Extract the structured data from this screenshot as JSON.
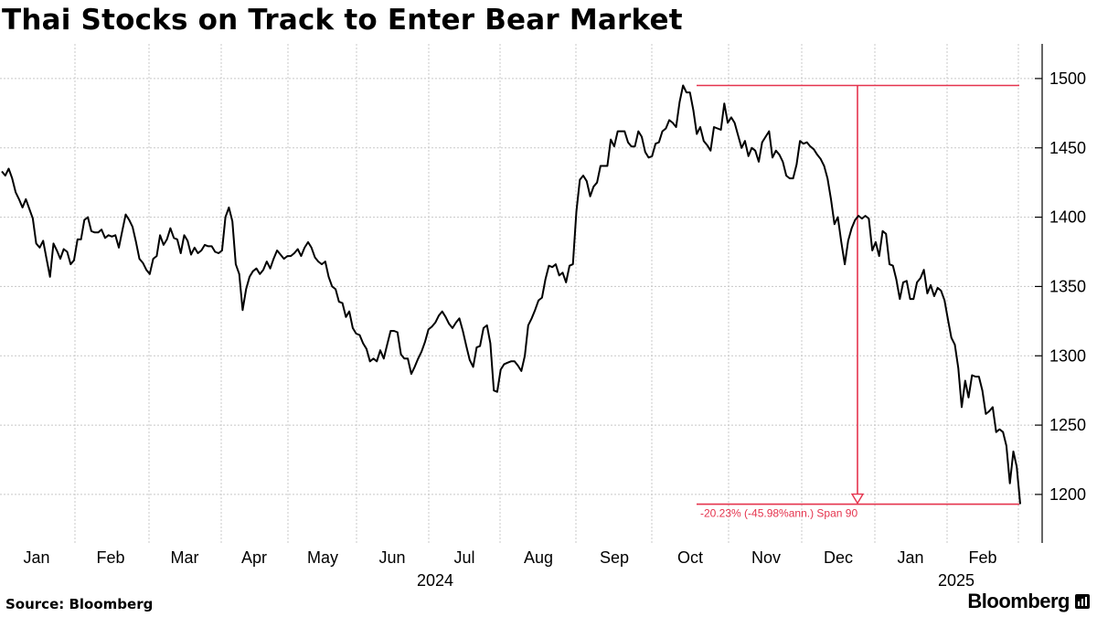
{
  "header": {
    "title": "Thai Stocks on Track to Enter Bear Market"
  },
  "footer": {
    "source": "Source: Bloomberg",
    "brand": "Bloomberg"
  },
  "colors": {
    "line": "#000000",
    "annotation": "#e5334d",
    "grid": "#c8c8c8"
  },
  "chart_data": {
    "type": "line",
    "title": "Thai Stocks on Track to Enter Bear Market",
    "xlabel": "",
    "ylabel": "",
    "ylim": [
      1165,
      1525
    ],
    "y_ticks": [
      1200,
      1250,
      1300,
      1350,
      1400,
      1450,
      1500
    ],
    "y_axis_side": "right",
    "x_month_labels": [
      "Jan",
      "Feb",
      "Mar",
      "Apr",
      "May",
      "Jun",
      "Jul",
      "Aug",
      "Sep",
      "Oct",
      "Nov",
      "Dec",
      "Jan",
      "Feb"
    ],
    "x_year_labels": [
      "2024",
      "2025"
    ],
    "grid": true,
    "series": [
      {
        "name": "",
        "values": [
          1433,
          1430,
          1435,
          1428,
          1418,
          1413,
          1407,
          1413,
          1406,
          1399,
          1381,
          1378,
          1383,
          1370,
          1357,
          1381,
          1376,
          1370,
          1377,
          1375,
          1366,
          1369,
          1384,
          1384,
          1398,
          1400,
          1390,
          1389,
          1389,
          1391,
          1385,
          1387,
          1386,
          1387,
          1378,
          1390,
          1402,
          1398,
          1393,
          1382,
          1370,
          1367,
          1362,
          1359,
          1370,
          1372,
          1387,
          1380,
          1384,
          1392,
          1385,
          1384,
          1374,
          1387,
          1383,
          1373,
          1378,
          1374,
          1376,
          1380,
          1379,
          1379,
          1375,
          1374,
          1376,
          1400,
          1407,
          1397,
          1366,
          1359,
          1333,
          1348,
          1357,
          1361,
          1363,
          1359,
          1362,
          1368,
          1363,
          1370,
          1376,
          1373,
          1370,
          1372,
          1372,
          1374,
          1377,
          1372,
          1378,
          1382,
          1378,
          1371,
          1368,
          1366,
          1368,
          1357,
          1350,
          1348,
          1339,
          1338,
          1328,
          1332,
          1320,
          1316,
          1315,
          1309,
          1305,
          1296,
          1298,
          1296,
          1304,
          1298,
          1308,
          1318,
          1318,
          1317,
          1301,
          1298,
          1298,
          1287,
          1292,
          1298,
          1303,
          1310,
          1319,
          1321,
          1324,
          1329,
          1332,
          1328,
          1323,
          1320,
          1324,
          1327,
          1318,
          1307,
          1297,
          1292,
          1306,
          1307,
          1320,
          1322,
          1309,
          1275,
          1274,
          1290,
          1294,
          1295,
          1296,
          1296,
          1293,
          1289,
          1300,
          1322,
          1327,
          1333,
          1340,
          1342,
          1355,
          1365,
          1364,
          1366,
          1358,
          1360,
          1353,
          1365,
          1366,
          1404,
          1427,
          1430,
          1426,
          1415,
          1422,
          1425,
          1437,
          1437,
          1437,
          1456,
          1451,
          1462,
          1462,
          1462,
          1454,
          1451,
          1451,
          1462,
          1458,
          1447,
          1443,
          1444,
          1453,
          1454,
          1462,
          1464,
          1470,
          1468,
          1465,
          1483,
          1495,
          1490,
          1490,
          1477,
          1460,
          1465,
          1455,
          1452,
          1448,
          1465,
          1464,
          1463,
          1482,
          1468,
          1472,
          1468,
          1459,
          1450,
          1455,
          1444,
          1450,
          1448,
          1440,
          1454,
          1458,
          1462,
          1443,
          1448,
          1445,
          1440,
          1430,
          1428,
          1428,
          1438,
          1455,
          1453,
          1454,
          1451,
          1449,
          1445,
          1442,
          1437,
          1428,
          1413,
          1395,
          1400,
          1382,
          1366,
          1383,
          1392,
          1398,
          1401,
          1399,
          1401,
          1399,
          1376,
          1382,
          1372,
          1390,
          1388,
          1366,
          1365,
          1355,
          1341,
          1353,
          1354,
          1341,
          1341,
          1353,
          1356,
          1362,
          1345,
          1351,
          1343,
          1349,
          1347,
          1340,
          1326,
          1313,
          1308,
          1291,
          1263,
          1282,
          1270,
          1286,
          1285,
          1285,
          1275,
          1258,
          1260,
          1263,
          1245,
          1247,
          1245,
          1235,
          1208,
          1231,
          1220,
          1193
        ]
      }
    ],
    "annotation": {
      "label": "-20.23% (-45.98%ann.) Span 90",
      "from_value": 1495,
      "to_value": 1193
    }
  }
}
